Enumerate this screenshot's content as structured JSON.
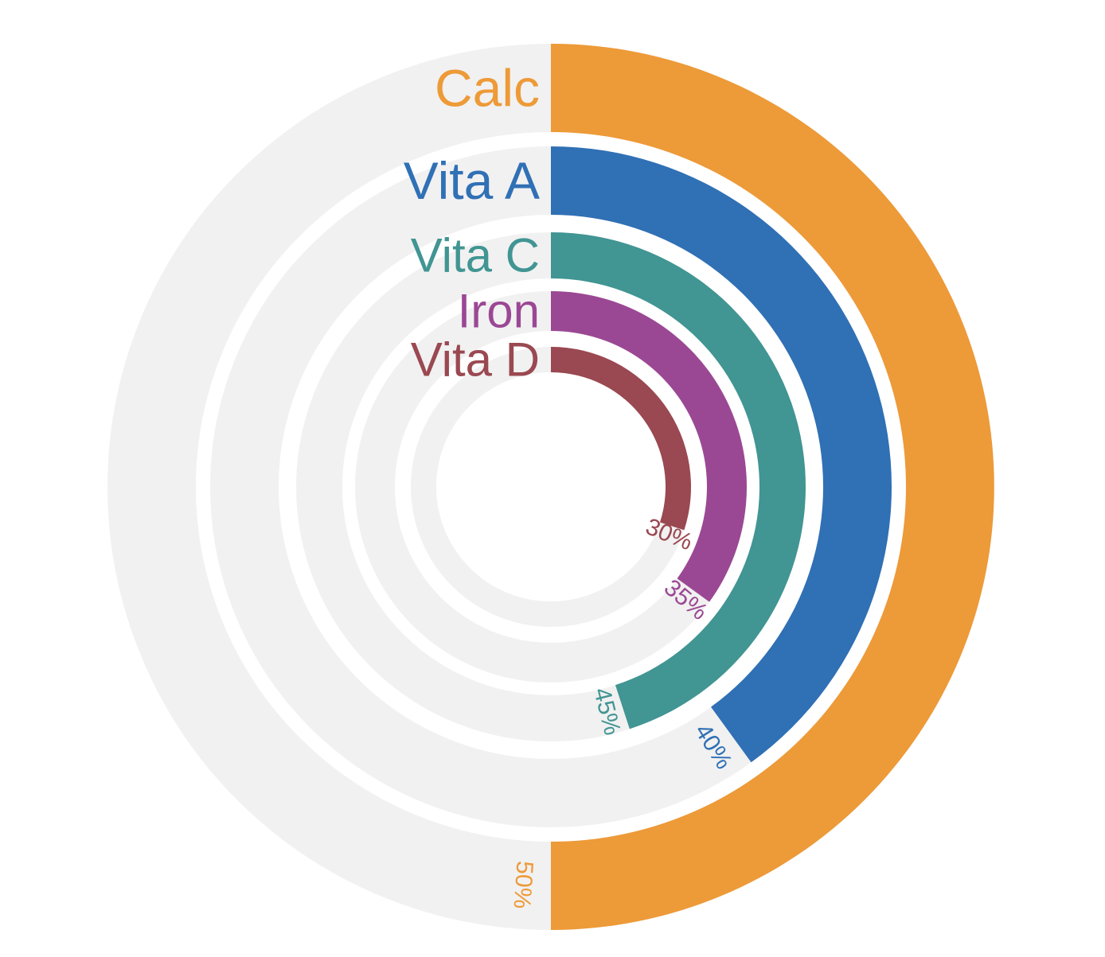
{
  "chart_data": {
    "type": "radial-bar",
    "max": 100,
    "track_color": "#f1f1f1",
    "series": [
      {
        "name": "Calc",
        "value": 50,
        "value_label": "50%",
        "color": "#ed9a38"
      },
      {
        "name": "Vita A",
        "value": 40,
        "value_label": "40%",
        "color": "#3070b5"
      },
      {
        "name": "Vita C",
        "value": 45,
        "value_label": "45%",
        "color": "#419593"
      },
      {
        "name": "Iron",
        "value": 35,
        "value_label": "35%",
        "color": "#9b4894"
      },
      {
        "name": "Vita D",
        "value": 30,
        "value_label": "30%",
        "color": "#9a4851"
      }
    ]
  }
}
